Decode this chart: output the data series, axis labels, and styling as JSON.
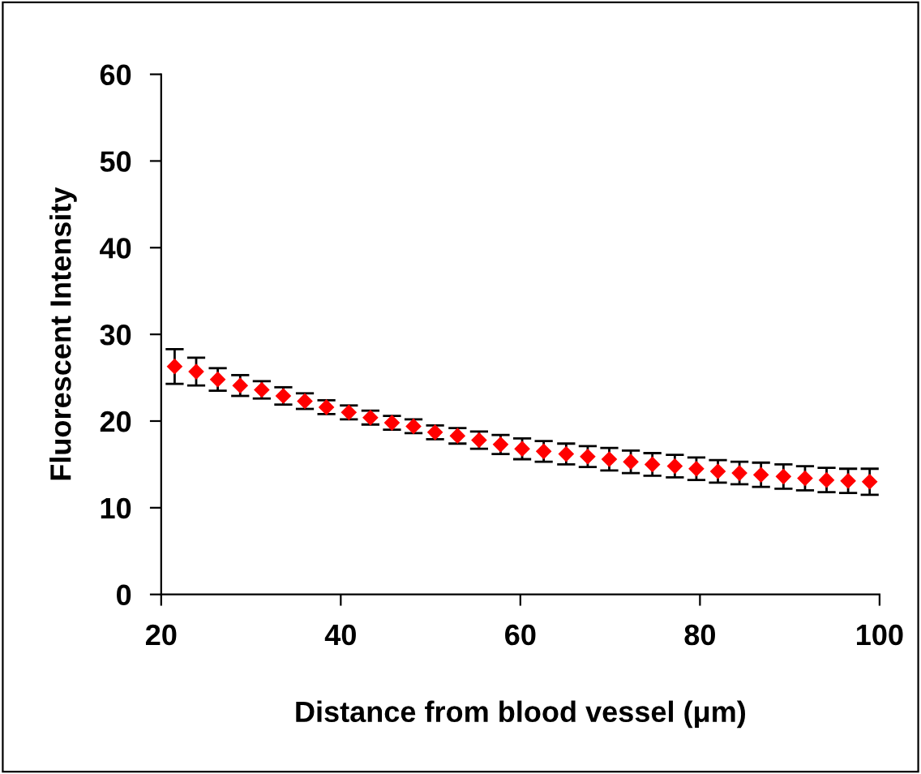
{
  "chart_data": {
    "type": "scatter",
    "xlabel": "Distance from blood vessel (μm)",
    "ylabel": "Fluorescent Intensity",
    "x": [
      21.5,
      23.9,
      26.3,
      28.8,
      31.2,
      33.6,
      36.0,
      38.4,
      40.9,
      43.3,
      45.7,
      48.1,
      50.5,
      53.0,
      55.4,
      57.8,
      60.2,
      62.6,
      65.1,
      67.5,
      69.9,
      72.3,
      74.7,
      77.2,
      79.6,
      82.0,
      84.4,
      86.8,
      89.3,
      91.7,
      94.1,
      96.5,
      98.9
    ],
    "series": [
      {
        "color": "#ff0000",
        "values": [
          26.3,
          25.7,
          24.8,
          24.1,
          23.6,
          22.9,
          22.3,
          21.6,
          21.0,
          20.4,
          19.8,
          19.4,
          18.7,
          18.3,
          17.8,
          17.3,
          16.8,
          16.5,
          16.2,
          15.9,
          15.6,
          15.3,
          15.0,
          14.8,
          14.5,
          14.2,
          14.0,
          13.8,
          13.6,
          13.4,
          13.2,
          13.1,
          13.0
        ],
        "errors": [
          2.0,
          1.6,
          1.3,
          1.2,
          1.0,
          1.0,
          0.9,
          0.8,
          0.8,
          0.8,
          0.8,
          0.8,
          0.8,
          0.9,
          1.0,
          1.1,
          1.2,
          1.2,
          1.2,
          1.2,
          1.3,
          1.3,
          1.3,
          1.3,
          1.3,
          1.3,
          1.3,
          1.4,
          1.4,
          1.4,
          1.4,
          1.4,
          1.5
        ]
      }
    ],
    "marker": "diamond",
    "xlim": [
      20,
      100
    ],
    "xticks": [
      20,
      40,
      60,
      80,
      100
    ],
    "ylim": [
      0,
      60
    ],
    "yticks": [
      0,
      10,
      20,
      30,
      40,
      50,
      60
    ],
    "grid": false,
    "legend": false
  }
}
